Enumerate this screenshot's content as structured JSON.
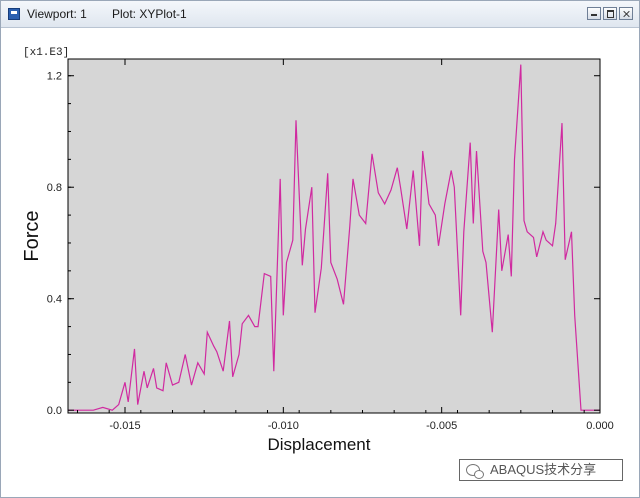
{
  "window": {
    "viewport_label": "Viewport: 1",
    "plot_label": "Plot: XYPlot-1"
  },
  "colors": {
    "plot_background": "#d6d6d6",
    "curve": "#d02aa0",
    "frame": "#000000"
  },
  "chart_data": {
    "type": "line",
    "xlabel": "Displacement",
    "ylabel": "Force",
    "y_scale_note": "[x1.E3]",
    "xlim": [
      -0.0168,
      0.0
    ],
    "ylim": [
      -0.01,
      1.26
    ],
    "x_ticks": [
      -0.015,
      -0.01,
      -0.005,
      0.0
    ],
    "x_tick_labels": [
      "-0.015",
      "-0.010",
      "-0.005",
      "0.000"
    ],
    "y_ticks": [
      0.0,
      0.4,
      0.8,
      1.2
    ],
    "y_tick_labels": [
      "0.0",
      "0.4",
      "0.8",
      "1.2"
    ],
    "series": [
      {
        "x": [
          -0.0168,
          -0.016,
          -0.0157,
          -0.0154,
          -0.0152,
          -0.015,
          -0.0149,
          -0.0147,
          -0.0146,
          -0.0144,
          -0.0143,
          -0.0141,
          -0.014,
          -0.0138,
          -0.0137,
          -0.0135,
          -0.0133,
          -0.0131,
          -0.0129,
          -0.0127,
          -0.0125,
          -0.0124,
          -0.0122,
          -0.0121,
          -0.0119,
          -0.0117,
          -0.0116,
          -0.0114,
          -0.0113,
          -0.0111,
          -0.0109,
          -0.0108,
          -0.0106,
          -0.0104,
          -0.0103,
          -0.0101,
          -0.01,
          -0.0099,
          -0.0097,
          -0.0096,
          -0.0094,
          -0.0093,
          -0.0091,
          -0.009,
          -0.0088,
          -0.0086,
          -0.0085,
          -0.0083,
          -0.0081,
          -0.0079,
          -0.0078,
          -0.0076,
          -0.0074,
          -0.0072,
          -0.007,
          -0.0068,
          -0.0066,
          -0.0064,
          -0.0063,
          -0.0061,
          -0.0059,
          -0.0057,
          -0.0056,
          -0.0054,
          -0.0052,
          -0.0051,
          -0.0049,
          -0.0047,
          -0.0046,
          -0.0044,
          -0.0043,
          -0.0041,
          -0.004,
          -0.0039,
          -0.0037,
          -0.0036,
          -0.0034,
          -0.0032,
          -0.0031,
          -0.0029,
          -0.0028,
          -0.0027,
          -0.0025,
          -0.0024,
          -0.0023,
          -0.0021,
          -0.002,
          -0.0018,
          -0.0017,
          -0.0015,
          -0.0014,
          -0.0012,
          -0.0011,
          -0.0009,
          -0.0008,
          -0.0006,
          -0.0005,
          -0.0004,
          -0.0002,
          -0.0001,
          0.0
        ],
        "y": [
          0.0,
          0.0,
          0.01,
          0.0,
          0.02,
          0.1,
          0.03,
          0.22,
          0.02,
          0.14,
          0.08,
          0.15,
          0.08,
          0.07,
          0.17,
          0.09,
          0.1,
          0.2,
          0.09,
          0.17,
          0.13,
          0.28,
          0.23,
          0.21,
          0.14,
          0.32,
          0.12,
          0.2,
          0.31,
          0.34,
          0.3,
          0.3,
          0.49,
          0.48,
          0.14,
          0.83,
          0.34,
          0.53,
          0.61,
          1.04,
          0.52,
          0.65,
          0.8,
          0.35,
          0.51,
          0.85,
          0.53,
          0.47,
          0.38,
          0.66,
          0.83,
          0.7,
          0.67,
          0.92,
          0.78,
          0.74,
          0.79,
          0.87,
          0.8,
          0.65,
          0.86,
          0.59,
          0.93,
          0.74,
          0.7,
          0.59,
          0.74,
          0.86,
          0.8,
          0.34,
          0.64,
          0.96,
          0.67,
          0.93,
          0.57,
          0.53,
          0.28,
          0.72,
          0.5,
          0.63,
          0.48,
          0.9,
          1.24,
          0.68,
          0.64,
          0.62,
          0.55,
          0.64,
          0.61,
          0.59,
          0.67,
          1.03,
          0.54,
          0.64,
          0.34,
          0.0,
          0.0,
          0.0,
          0.0,
          0.0,
          0.0
        ]
      }
    ]
  },
  "watermark": {
    "text": "ABAQUS技术分享"
  }
}
